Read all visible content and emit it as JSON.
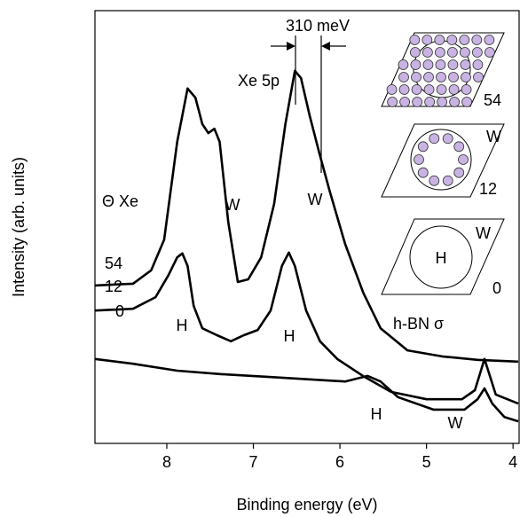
{
  "chart_data": {
    "type": "line",
    "x_label": "Binding energy (eV)",
    "y_label": "Intensity (arb. units)",
    "xlim": [
      8.83,
      3.93
    ],
    "xticks": [
      8,
      7,
      6,
      5,
      4
    ],
    "ylim": [
      0,
      100
    ],
    "series": [
      {
        "name": "54",
        "color": "#000000",
        "x": [
          8.83,
          8.39,
          8.18,
          8.03,
          7.88,
          7.76,
          7.67,
          7.59,
          7.52,
          7.45,
          7.39,
          7.29,
          7.18,
          7.06,
          6.91,
          6.76,
          6.63,
          6.52,
          6.45,
          6.35,
          6.24,
          6.12,
          5.94,
          5.73,
          5.53,
          5.22,
          4.82,
          4.41,
          3.94
        ],
        "values": [
          36.5,
          36.9,
          40.0,
          47.1,
          69.7,
          82.0,
          79.9,
          73.8,
          71.7,
          72.7,
          69.7,
          51.2,
          37.3,
          37.9,
          43.0,
          55.3,
          73.8,
          86.1,
          84.4,
          75.8,
          67.2,
          58.4,
          46.1,
          34.8,
          26.6,
          21.5,
          20.1,
          19.3,
          18.9
        ]
      },
      {
        "name": "12",
        "color": "#000000",
        "x": [
          8.83,
          8.39,
          8.13,
          7.98,
          7.88,
          7.82,
          7.76,
          7.69,
          7.59,
          7.42,
          7.26,
          7.11,
          6.95,
          6.8,
          6.67,
          6.59,
          6.52,
          6.39,
          6.23,
          6.03,
          5.72,
          5.41,
          5.0,
          4.59,
          4.44,
          4.33,
          4.2,
          3.94
        ],
        "values": [
          30.7,
          31.1,
          33.8,
          38.9,
          43.0,
          43.9,
          41.0,
          31.8,
          26.6,
          25.0,
          23.6,
          25.0,
          26.2,
          30.7,
          41.0,
          44.1,
          41.0,
          30.7,
          23.6,
          19.5,
          15.4,
          11.9,
          10.2,
          10.2,
          12.3,
          19.5,
          11.3,
          9.2
        ]
      },
      {
        "name": "0",
        "color": "#000000",
        "x": [
          8.83,
          8.39,
          7.88,
          7.37,
          6.86,
          6.35,
          5.94,
          5.68,
          5.53,
          5.33,
          4.92,
          4.56,
          4.41,
          4.33,
          4.24,
          4.1,
          3.94
        ],
        "values": [
          19.5,
          18.4,
          16.8,
          16.0,
          15.4,
          14.8,
          14.3,
          15.6,
          14.3,
          10.7,
          7.8,
          7.8,
          10.2,
          12.7,
          9.2,
          6.1,
          5.1
        ]
      }
    ],
    "annotations": [
      "Xe 5p",
      "310 meV",
      "Θ Xe",
      "W",
      "W",
      "H",
      "H",
      "h-BN σ",
      "H",
      "W"
    ],
    "insets": [
      {
        "coverage": "54"
      },
      {
        "site": "W",
        "coverage": "12"
      },
      {
        "site": "W",
        "center": "H",
        "coverage": "0"
      }
    ]
  }
}
